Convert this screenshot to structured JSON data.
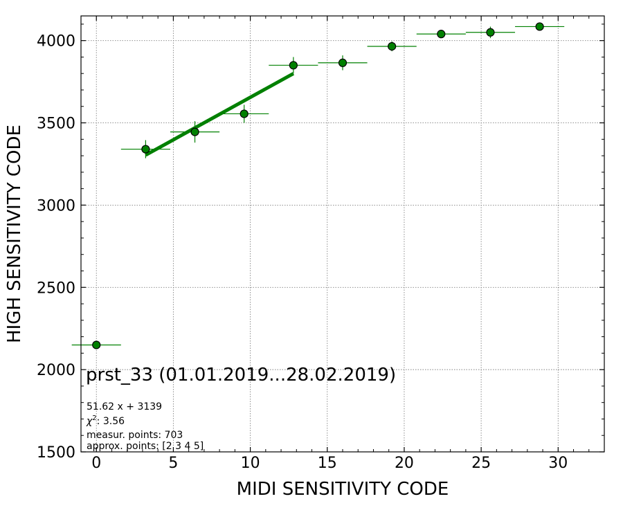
{
  "colors": {
    "marker_fill": "#008000",
    "marker_edge": "#000000",
    "fit_line": "#008000",
    "grid": "#808080",
    "axes": "#000000"
  },
  "chart_data": {
    "type": "scatter",
    "title": "",
    "xlabel": "MIDI SENSITIVITY CODE",
    "ylabel": "HIGH SENSITIVITY CODE",
    "xlim": [
      -1,
      33
    ],
    "ylim": [
      1500,
      4150
    ],
    "xticks": [
      0,
      5,
      10,
      15,
      20,
      25,
      30
    ],
    "yticks": [
      1500,
      2000,
      2500,
      3000,
      3500,
      4000
    ],
    "grid": true,
    "series": [
      {
        "points": [
          {
            "x": 0.0,
            "y": 2150,
            "xerr": 1.6,
            "yerr": 0
          },
          {
            "x": 3.2,
            "y": 3340,
            "xerr": 1.6,
            "yerr": 55
          },
          {
            "x": 6.4,
            "y": 3445,
            "xerr": 1.6,
            "yerr": 65
          },
          {
            "x": 9.6,
            "y": 3555,
            "xerr": 1.6,
            "yerr": 55
          },
          {
            "x": 12.8,
            "y": 3850,
            "xerr": 1.6,
            "yerr": 50
          },
          {
            "x": 16.0,
            "y": 3865,
            "xerr": 1.6,
            "yerr": 45
          },
          {
            "x": 19.2,
            "y": 3965,
            "xerr": 1.6,
            "yerr": 30
          },
          {
            "x": 22.4,
            "y": 4040,
            "xerr": 1.6,
            "yerr": 15
          },
          {
            "x": 25.6,
            "y": 4050,
            "xerr": 1.6,
            "yerr": 35
          },
          {
            "x": 28.8,
            "y": 4085,
            "xerr": 1.6,
            "yerr": 15
          }
        ]
      }
    ],
    "fit": {
      "slope": 51.62,
      "intercept": 3139,
      "x_range": [
        3.2,
        12.8
      ]
    },
    "annotations": {
      "big": "prst_33 (01.01.2019...28.02.2019)",
      "equation": "51.62 x + 3139",
      "chi2_label": "χ",
      "chi2_sup": "2",
      "chi2_value": ": 3.56",
      "measur_points": "measur. points: 703",
      "approx_points": "approx. points: [2 3 4 5]"
    }
  }
}
